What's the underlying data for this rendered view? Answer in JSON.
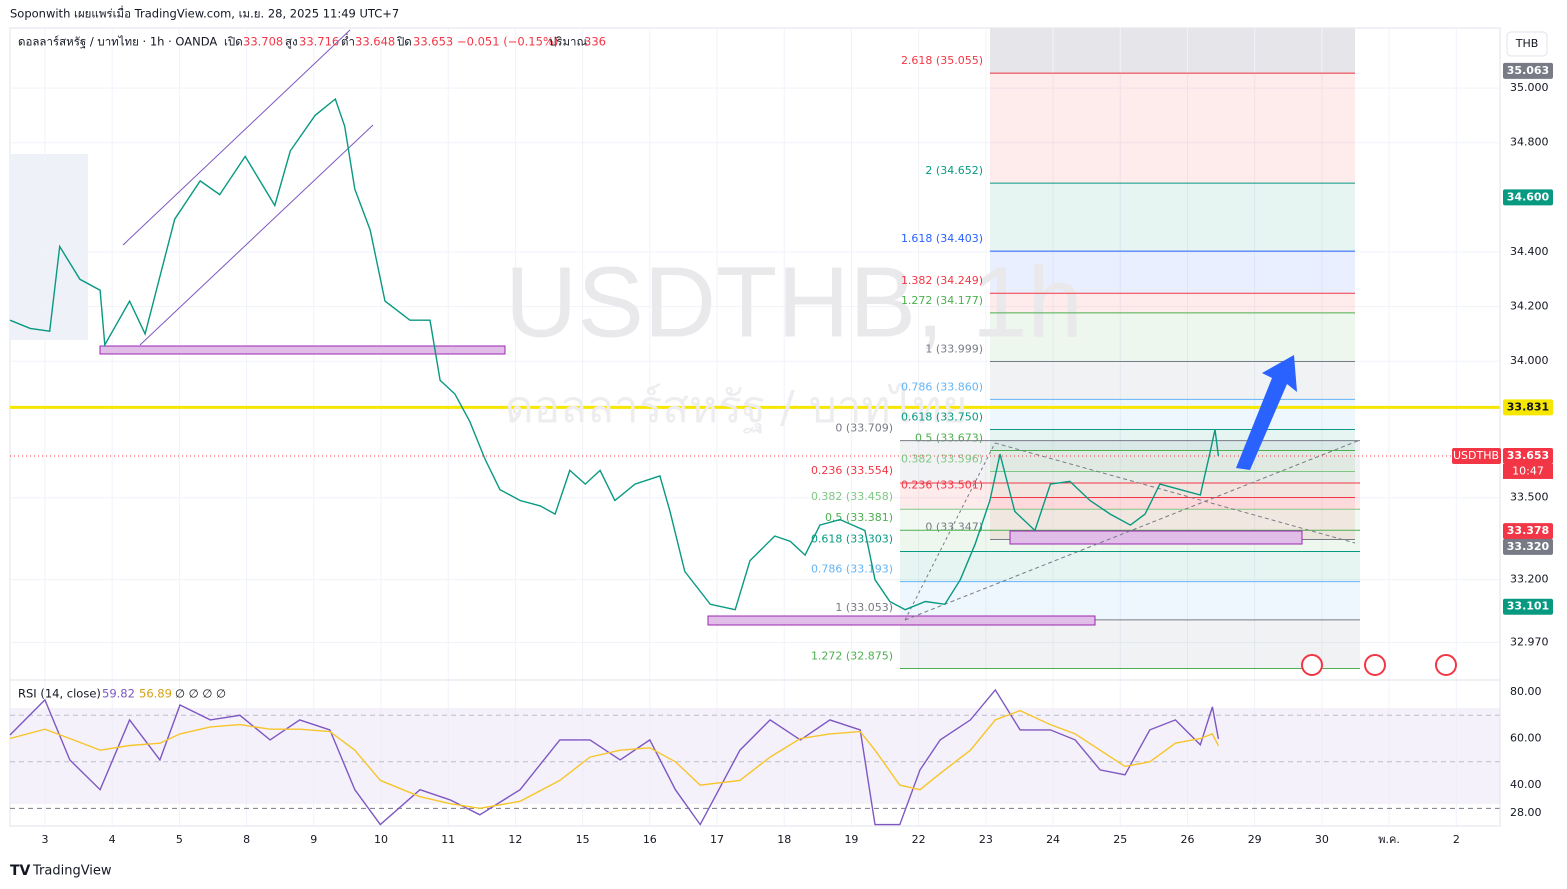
{
  "header": {
    "publisher": "Soponwith เผยแพร่เมื่อ TradingView.com, เม.ย. 28, 2025 11:49 UTC+7",
    "symbol": "ดอลลาร์สหรัฐ / บาทไทย · 1h · OANDA",
    "open_label": "เปิด",
    "open": 33.708,
    "high_label": "สูง",
    "high": 33.716,
    "low_label": "ต่ำ",
    "low": 33.648,
    "close_label": "ปิด",
    "close": 33.653,
    "change": "−0.051 (−0.15%)",
    "volume_label": "ปริมาณ",
    "volume": 336,
    "currency": "THB",
    "footer": "TradingView"
  },
  "chart_data": [
    {
      "type": "line",
      "watermark": "USDTHB, 1h",
      "watermark_sub": "ดอลลาร์สหรัฐ / บาทไทย",
      "color": "#089981",
      "x": [
        -0.52,
        -0.22,
        0.07,
        0.22,
        0.52,
        0.82,
        0.89,
        1.26,
        1.49,
        1.93,
        2.31,
        2.6,
        2.98,
        3.42,
        3.65,
        4.02,
        4.32,
        4.46,
        4.61,
        4.84,
        5.06,
        5.43,
        5.73,
        5.88,
        6.1,
        6.32,
        6.55,
        6.77,
        7.07,
        7.37,
        7.59,
        7.81,
        8.04,
        8.26,
        8.48,
        8.78,
        9.15,
        9.3,
        9.52,
        9.9,
        10.27,
        10.49,
        10.86,
        11.09,
        11.31,
        11.53,
        11.83,
        12.2,
        12.35,
        12.57,
        12.8,
        13.1,
        13.39,
        13.62,
        13.84,
        14.06,
        14.21,
        14.43,
        14.73,
        14.96,
        15.25,
        15.55,
        15.85,
        16.15,
        16.37,
        16.59,
        16.89,
        17.19,
        17.34,
        17.41,
        17.46
      ],
      "values": [
        34.15,
        34.12,
        34.11,
        34.42,
        34.3,
        34.26,
        34.06,
        34.22,
        34.1,
        34.52,
        34.66,
        34.61,
        34.75,
        34.57,
        34.77,
        34.9,
        34.96,
        34.86,
        34.63,
        34.48,
        34.22,
        34.15,
        34.15,
        33.93,
        33.88,
        33.78,
        33.64,
        33.53,
        33.49,
        33.47,
        33.44,
        33.6,
        33.55,
        33.6,
        33.49,
        33.55,
        33.58,
        33.45,
        33.23,
        33.11,
        33.09,
        33.27,
        33.36,
        33.34,
        33.29,
        33.4,
        33.42,
        33.38,
        33.2,
        33.12,
        33.09,
        33.12,
        33.11,
        33.2,
        33.33,
        33.49,
        33.66,
        33.45,
        33.38,
        33.55,
        33.56,
        33.49,
        33.44,
        33.4,
        33.44,
        33.55,
        33.53,
        33.51,
        33.67,
        33.75,
        33.653
      ],
      "xlim": [
        -0.52,
        21.65
      ],
      "xticks": [
        {
          "value": 0,
          "label": "3"
        },
        {
          "value": 1,
          "label": "4"
        },
        {
          "value": 2,
          "label": "5"
        },
        {
          "value": 3,
          "label": "8"
        },
        {
          "value": 4,
          "label": "9"
        },
        {
          "value": 5,
          "label": "10"
        },
        {
          "value": 6,
          "label": "11"
        },
        {
          "value": 7,
          "label": "12"
        },
        {
          "value": 8,
          "label": "15"
        },
        {
          "value": 9,
          "label": "16"
        },
        {
          "value": 10,
          "label": "17"
        },
        {
          "value": 11,
          "label": "18"
        },
        {
          "value": 12,
          "label": "19"
        },
        {
          "value": 13,
          "label": "22"
        },
        {
          "value": 14,
          "label": "23"
        },
        {
          "value": 15,
          "label": "24"
        },
        {
          "value": 16,
          "label": "25"
        },
        {
          "value": 17,
          "label": "26"
        },
        {
          "value": 18,
          "label": "29"
        },
        {
          "value": 19,
          "label": "30"
        },
        {
          "value": 20,
          "label": "พ.ค."
        },
        {
          "value": 21,
          "label": "2"
        }
      ],
      "ylim": [
        32.84,
        35.22
      ],
      "yticks": [
        {
          "value": 35,
          "label": "35.000"
        },
        {
          "value": 34.8,
          "label": "34.800"
        },
        {
          "value": 34.4,
          "label": "34.400"
        },
        {
          "value": 34.2,
          "label": "34.200"
        },
        {
          "value": 34,
          "label": "34.000"
        },
        {
          "value": 33.5,
          "label": "33.500"
        },
        {
          "value": 33.2,
          "label": "33.200"
        },
        {
          "value": 32.97,
          "label": "32.970"
        }
      ],
      "grid": true,
      "fib_sets": [
        [
          {
            "label": "2.618 (35.055)",
            "value": 35.055,
            "color": "#f23645"
          },
          {
            "label": "2 (34.652)",
            "value": 34.652,
            "color": "#089981"
          },
          {
            "label": "1.618 (34.403)",
            "value": 34.403,
            "color": "#2962ff"
          },
          {
            "label": "1.382 (34.249)",
            "value": 34.249,
            "color": "#f23645"
          },
          {
            "label": "1.272 (34.177)",
            "value": 34.177,
            "color": "#4caf50"
          },
          {
            "label": "1 (33.999)",
            "value": 33.999,
            "color": "#787b86"
          },
          {
            "label": "0.786 (33.860)",
            "value": 33.86,
            "color": "#64b5f6"
          },
          {
            "label": "0.618 (33.750)",
            "value": 33.75,
            "color": "#089981"
          },
          {
            "label": "0.5 (33.673)",
            "value": 33.673,
            "color": "#4caf50"
          },
          {
            "label": "0.382 (33.596)",
            "value": 33.596,
            "color": "#81c784"
          },
          {
            "label": "0.236 (33.501)",
            "value": 33.501,
            "color": "#f23645"
          },
          {
            "label": "0 (33.347)",
            "value": 33.347,
            "color": "#787b86"
          }
        ],
        [
          {
            "label": "0 (33.709)",
            "value": 33.709,
            "color": "#787b86"
          },
          {
            "label": "0.236 (33.554)",
            "value": 33.554,
            "color": "#f23645"
          },
          {
            "label": "0.382 (33.458)",
            "value": 33.458,
            "color": "#81c784"
          },
          {
            "label": "0.5 (33.381)",
            "value": 33.381,
            "color": "#4caf50"
          },
          {
            "label": "0.618 (33.303)",
            "value": 33.303,
            "color": "#089981"
          },
          {
            "label": "0.786 (33.193)",
            "value": 33.193,
            "color": "#64b5f6"
          },
          {
            "label": "1 (33.053)",
            "value": 33.053,
            "color": "#787b86"
          },
          {
            "label": "1.272 (32.875)",
            "value": 32.875,
            "color": "#4caf50"
          }
        ]
      ],
      "price_labels": [
        {
          "value": 35.063,
          "label": "35.063",
          "color": "#787b86"
        },
        {
          "value": 34.6,
          "label": "34.600",
          "color": "#089981"
        },
        {
          "value": 33.831,
          "label": "33.831",
          "color": "#f7e600",
          "text_color": "#131722",
          "line": "solid"
        },
        {
          "value": 33.653,
          "label": "33.653",
          "color": "#f23645",
          "name": "USDTHB",
          "countdown": "10:47",
          "line": "dotted"
        },
        {
          "value": 33.378,
          "label": "33.378",
          "color": "#f23645"
        },
        {
          "value": 33.32,
          "label": "33.320",
          "color": "#787b86"
        },
        {
          "value": 33.101,
          "label": "33.101",
          "color": "#089981"
        }
      ]
    },
    {
      "type": "line",
      "title": "RSI (14, close)",
      "empty_values": "∅ ∅ ∅ ∅",
      "x": [
        -0.52,
        0,
        0.37,
        0.82,
        1.26,
        1.71,
        2.01,
        2.46,
        2.9,
        3.35,
        3.79,
        4.24,
        4.61,
        4.99,
        5.58,
        6.03,
        6.47,
        7.07,
        7.66,
        8.11,
        8.56,
        9.0,
        9.38,
        9.75,
        10.34,
        10.79,
        11.24,
        11.68,
        12.13,
        12.35,
        12.72,
        13.02,
        13.32,
        13.77,
        14.14,
        14.51,
        14.96,
        15.33,
        15.7,
        16.07,
        16.44,
        16.82,
        17.19,
        17.37,
        17.46
      ],
      "series": [
        {
          "color": "#7e57c2",
          "values": [
            61.5,
            76.6,
            50.8,
            38,
            68,
            50.8,
            74.4,
            68,
            70,
            59.4,
            68,
            63.7,
            38,
            23,
            38,
            33.6,
            27.2,
            38,
            59.4,
            59.4,
            50.8,
            59.4,
            38,
            23,
            55,
            68,
            59.4,
            68,
            63.7,
            23,
            23,
            46.5,
            59.4,
            68,
            80.9,
            63.7,
            63.7,
            59.4,
            46.5,
            44.4,
            63.7,
            68,
            57.3,
            73.6,
            59.82
          ]
        },
        {
          "color": "#f7c52b",
          "values": [
            60,
            64,
            60,
            55,
            57,
            58,
            62,
            65,
            66,
            64,
            64,
            63,
            55,
            42,
            35,
            32,
            30,
            33,
            42,
            52,
            55,
            56,
            50,
            40,
            42,
            52,
            60,
            62,
            63,
            55,
            40,
            38,
            45,
            55,
            68,
            72,
            66,
            62,
            55,
            48,
            50,
            58,
            60,
            62,
            56.89
          ]
        }
      ],
      "ylim": [
        22.4,
        84.3
      ],
      "yticks": [
        {
          "value": 80,
          "label": "80.00"
        },
        {
          "value": 60,
          "label": "60.00"
        },
        {
          "value": 40,
          "label": "40.00"
        },
        {
          "value": 28,
          "label": "28.00"
        }
      ],
      "bands": [
        70,
        50,
        30
      ]
    }
  ]
}
